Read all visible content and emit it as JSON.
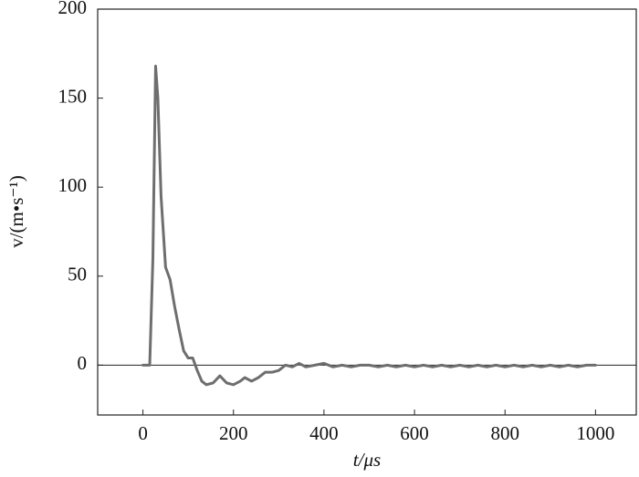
{
  "chart_data": {
    "type": "line",
    "x_label": "t/μs",
    "y_label": "v/(m•s⁻¹)",
    "x": [
      0,
      15,
      22,
      28,
      33,
      40,
      50,
      60,
      70,
      80,
      90,
      100,
      110,
      120,
      130,
      140,
      155,
      170,
      185,
      200,
      215,
      225,
      240,
      255,
      270,
      285,
      300,
      315,
      330,
      345,
      360,
      380,
      400,
      420,
      440,
      460,
      480,
      500,
      520,
      540,
      560,
      580,
      600,
      620,
      640,
      660,
      680,
      700,
      720,
      740,
      760,
      780,
      800,
      820,
      840,
      860,
      880,
      900,
      920,
      940,
      960,
      980,
      1000
    ],
    "series": [
      {
        "name": "v",
        "color": "#6e6e6e",
        "values": [
          0,
          0,
          60,
          168,
          150,
          95,
          55,
          48,
          33,
          20,
          8,
          4,
          4,
          -3,
          -9,
          -11,
          -10,
          -6,
          -10,
          -11,
          -9,
          -7,
          -9,
          -7,
          -4,
          -4,
          -3,
          0,
          -1,
          1,
          -1,
          0,
          1,
          -1,
          0,
          -1,
          0,
          0,
          -1,
          0,
          -1,
          0,
          -1,
          0,
          -1,
          0,
          -1,
          0,
          -1,
          0,
          -1,
          0,
          -1,
          0,
          -1,
          0,
          -1,
          0,
          -1,
          0,
          -1,
          0,
          0
        ]
      }
    ],
    "xlim": [
      -100,
      1090
    ],
    "ylim": [
      -28,
      200
    ],
    "xticks": [
      0,
      200,
      400,
      600,
      800,
      1000
    ],
    "yticks": [
      0,
      50,
      100,
      150,
      200
    ],
    "zero_line": true
  }
}
